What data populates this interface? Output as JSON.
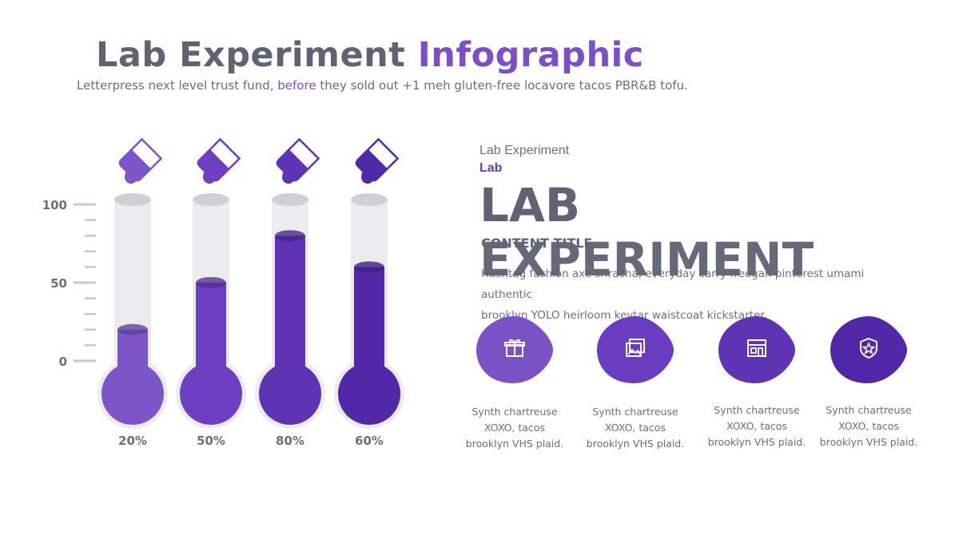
{
  "header": {
    "title_main": "Lab Experiment",
    "title_accent": "Infographic",
    "subtitle_pre": "Letterpress next level trust fund, ",
    "subtitle_accent": "before",
    "subtitle_post": " they sold out +1 meh gluten-free locavore tacos PBR&B tofu."
  },
  "chart_data": {
    "type": "bar",
    "style": "thermometer-tubes",
    "y_ticks": [
      "100",
      "50",
      "0"
    ],
    "ylim": [
      0,
      100
    ],
    "fills": [
      0.2,
      0.5,
      0.8,
      0.6
    ],
    "categories": [
      "20%",
      "50%",
      "80%",
      "60%"
    ],
    "colors": [
      "#7e55c8",
      "#6e3fc2",
      "#5e33b4",
      "#5129a8"
    ]
  },
  "right_panel": {
    "small_title": "Lab Experiment",
    "lab_label": "Lab",
    "big_line1": "LAB",
    "big_line2": "EXPERIMENT",
    "content_title": "CONTENT TITLE",
    "body_line1": "Hashtag fashion axe sriracha, everyday carry freegan pinterest umami authentic",
    "body_line2": "brooklyn YOLO heirloom keytar waistcoat kickstarter."
  },
  "features": [
    {
      "icon": "gift-icon",
      "line1": "Synth chartreuse",
      "line2": "XOXO, tacos",
      "line3": "brooklyn VHS plaid.",
      "color": "#7a52c6"
    },
    {
      "icon": "image-gallery-icon",
      "line1": "Synth chartreuse",
      "line2": "XOXO, tacos",
      "line3": "brooklyn VHS plaid.",
      "color": "#6a3cbf"
    },
    {
      "icon": "store-icon",
      "line1": "Synth chartreuse",
      "line2": "XOXO, tacos",
      "line3": "brooklyn VHS plaid.",
      "color": "#5e33b4"
    },
    {
      "icon": "shield-star-icon",
      "line1": "Synth chartreuse",
      "line2": "XOXO, tacos",
      "line3": "brooklyn VHS plaid.",
      "color": "#5129a8"
    }
  ]
}
